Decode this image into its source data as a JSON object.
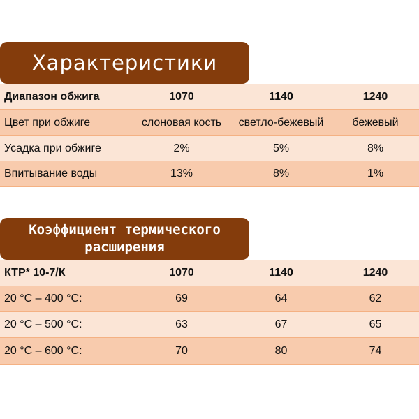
{
  "characteristics": {
    "title": "Характеристики",
    "header": [
      "Диапазон обжига",
      "1070",
      "1140",
      "1240"
    ],
    "rows": [
      [
        "Цвет при обжиге",
        "слоновая кость",
        "светло-бежевый",
        "бежевый"
      ],
      [
        "Усадка при обжиге",
        "2%",
        "5%",
        "8%"
      ],
      [
        "Впитывание воды",
        "13%",
        "8%",
        "1%"
      ]
    ]
  },
  "expansion": {
    "title_line1": "Коэффициент термического",
    "title_line2": "расширения",
    "header": [
      "КТР* 10-7/К",
      "1070",
      "1140",
      "1240"
    ],
    "rows": [
      [
        "20 °C – 400 °C:",
        "69",
        "64",
        "62"
      ],
      [
        "20 °C – 500 °C:",
        "63",
        "67",
        "65"
      ],
      [
        "20 °C – 600 °C:",
        "70",
        "80",
        "74"
      ]
    ]
  },
  "colors": {
    "title_bg": "#843c0c",
    "row_light": "#fbe5d6",
    "row_dark": "#f8cbad",
    "border": "#f4b183"
  }
}
